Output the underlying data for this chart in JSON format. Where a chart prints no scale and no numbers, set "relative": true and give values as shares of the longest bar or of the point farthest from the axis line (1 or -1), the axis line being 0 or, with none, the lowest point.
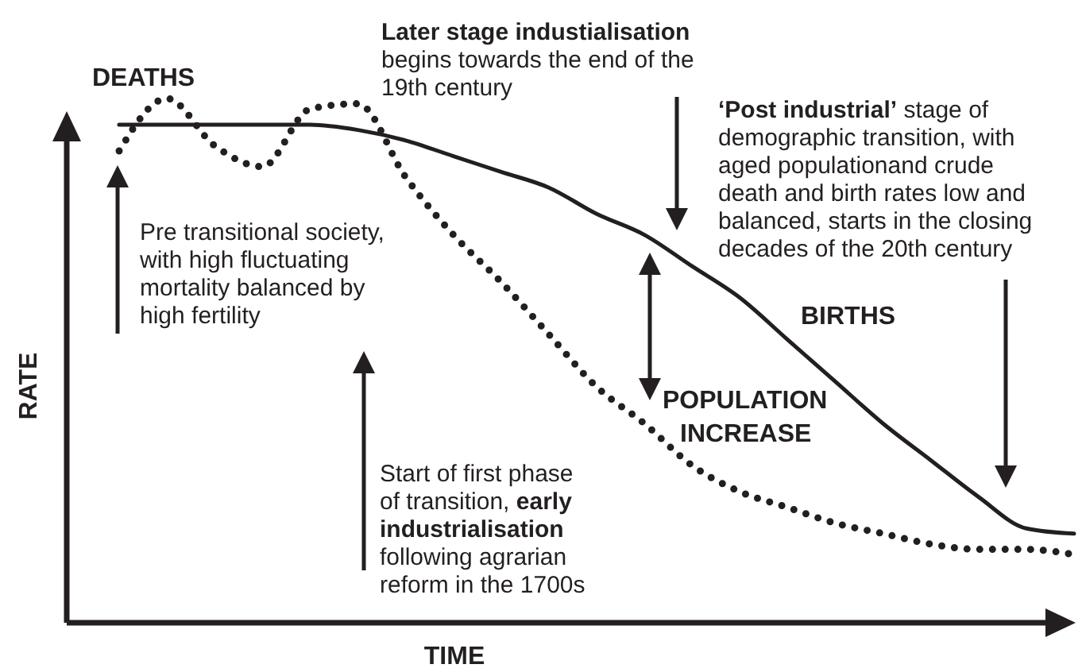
{
  "chart_data": {
    "type": "line",
    "relative": true,
    "xlabel": "TIME",
    "ylabel": "RATE",
    "categories": [
      null,
      null,
      null,
      null,
      null,
      null,
      null,
      null,
      null,
      null,
      null,
      null,
      null,
      null,
      null,
      null,
      null,
      null,
      null,
      null,
      null
    ],
    "series": [
      {
        "name": "BIRTHS",
        "color": "#231f20",
        "line_style": "solid",
        "values": [
          0.95,
          0.95,
          0.95,
          0.95,
          0.95,
          0.94,
          0.92,
          0.89,
          0.86,
          0.83,
          0.78,
          0.74,
          0.68,
          0.62,
          0.54,
          0.46,
          0.38,
          0.31,
          0.24,
          0.18,
          0.17
        ]
      },
      {
        "name": "DEATHS",
        "color": "#231f20",
        "line_style": "dotted",
        "values": [
          0.9,
          1,
          0.91,
          0.87,
          0.98,
          0.99,
          0.85,
          0.74,
          0.65,
          0.55,
          0.45,
          0.38,
          0.3,
          0.25,
          0.22,
          0.19,
          0.17,
          0.15,
          0.14,
          0.14,
          0.13
        ]
      }
    ],
    "annotations": [
      "Later stage industialisation",
      "begins towards the end of the 19th century",
      "‘Post industrial’",
      "stage of demographic transition, with aged populationand crude death and birth rates low and balanced, starts in the closing decades of the 20th century",
      "Pre transitional society, with high fluctuating mortality balanced by high fertility",
      "Start of first phase of transition,",
      "early industrialisation",
      "following agrarian reform in the 1700s",
      "POPULATION INCREASE"
    ]
  }
}
